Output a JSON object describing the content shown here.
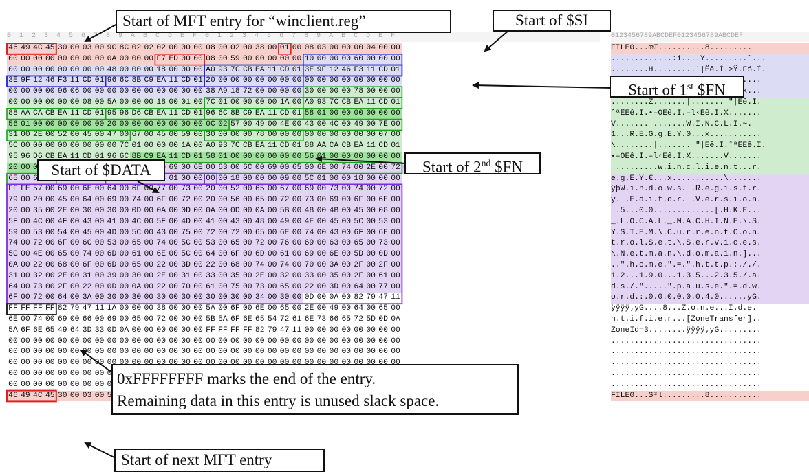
{
  "header": {
    "hex_offsets": "0  1  2  3  4  5  6  7  8  9  A  B  C  D  E  F  0  1  2  3  4  5  6  7  8  9  A  B  C  D  E  F",
    "ascii_offsets": "0123456789ABCDEF0123456789ABCDEF"
  },
  "colors": {
    "red_box": "#e02020",
    "blue_box": "#2828c8",
    "green_box": "#1e9e1e",
    "purple_box": "#7a2ee0",
    "black_box": "#111111"
  },
  "hex_rows": [
    "46 49 4C 45 30 00 03 00 9C 8C 02 02 02 00 00 00 08 00 02 00 38 00 01 00 08 03 00 00 00 04 00 00",
    "00 00 00 00 00 00 00 00 0A 00 00 00 F7 ED 00 00 08 00 59 00 00 00 00 00 10 00 00 00 60 00 00 00",
    "00 00 00 00 00 00 00 00 48 00 00 00 18 00 00 00 A0 93 7C CB EA 11 CD 01 3E 9F 12 46 F3 11 CD 01",
    "3E 9F 12 46 F3 11 CD 01 96 6C 8B C9 EA 11 CD 01 20 00 00 00 00 00 00 00 00 00 00 00 00 00 00 00",
    "00 00 00 00 96 06 00 00 00 00 00 00 00 00 00 00 38 A9 18 72 00 00 00 00 30 00 00 00 78 00 00 00",
    "00 00 00 00 00 00 08 00 5A 00 00 00 18 00 01 00 7C 01 00 00 00 00 1A 00 A0 93 7C CB EA 11 CD 01",
    "88 AA CA CB EA 11 CD 01 95 96 D6 CB EA 11 CD 01 96 6C 8B C9 EA 11 CD 01 58 01 00 00 00 00 00 00",
    "56 01 00 00 00 00 00 00 20 00 00 00 00 00 00 00 0C 02 57 00 49 00 4E 00 43 00 4C 00 49 00 7E 00",
    "31 00 2E 00 52 00 45 00 47 00 67 00 45 00 59 00 30 00 00 00 78 00 00 00 00 00 00 00 00 00 07 00",
    "5C 00 00 00 00 00 00 00 00 7C 01 00 00 00 1A 00 A0 93 7C CB EA 11 CD 01 88 AA CA CB EA 11 CD 01",
    "95 96 D6 CB EA 11 CD 01 96 6C 8B C9 EA 11 CD 01 58 01 00 00 00 00 00 00 56 01 00 00 00 00 00 00",
    "20 00 00 00 00 00 00 00 00 0D 01 77 00 69 00 6E 00 63 00 6C 00 69 00 65 00 6E 00 74 00 2E 00 72 00",
    "65 00 67 00 45 00 59 00 80 00 00 00 78 01 00 00 00 00 18 00 00 00 09 00 5C 01 00 00 18 00 00 00",
    "FF FE 57 00 69 00 6E 00 64 00 6F 00 77 00 73 00 20 00 52 00 65 00 67 00 69 00 73 00 74 00 72 00",
    "79 00 20 00 45 00 64 00 69 00 74 00 6F 00 72 00 20 00 56 00 65 00 72 00 73 00 69 00 6F 00 6E 00",
    "20 00 35 00 2E 00 30 00 30 00 0D 00 0A 00 0D 00 0A 00 0D 00 0A 00 5B 00 48 00 4B 00 45 00 08 00",
    "5F 00 4C 00 4F 00 43 00 41 00 4C 00 5F 00 4D 00 41 00 43 00 48 00 49 00 4E 00 45 00 5C 00 53 00",
    "59 00 53 00 54 00 45 00 4D 00 5C 00 43 00 75 00 72 00 72 00 65 00 6E 00 74 00 43 00 6F 00 6E 00",
    "74 00 72 00 6F 00 6C 00 53 00 65 00 74 00 5C 00 53 00 65 00 72 00 76 00 69 00 63 00 65 00 73 00",
    "5C 00 4E 00 65 00 74 00 6D 00 61 00 6E 00 5C 00 64 00 6F 00 6D 00 61 00 69 00 6E 00 5D 00 0D 00",
    "0A 00 22 00 68 00 6F 00 6D 00 65 00 22 00 3D 00 22 00 68 00 74 00 74 00 70 00 3A 00 2F 00 2F 00",
    "31 00 32 00 2E 00 31 00 39 00 30 00 2E 00 31 00 33 00 35 00 2E 00 32 00 33 00 35 00 2F 00 61 00",
    "64 00 73 00 2F 00 22 00 0D 00 0A 00 22 00 70 00 61 00 75 00 73 00 65 00 22 00 3D 00 64 00 77 00",
    "6F 00 72 00 64 00 3A 00 30 00 30 00 30 00 30 00 30 00 30 00 34 00 30 00 0D 00 0A 00 82 79 47 11",
    "FF FF FF FF 82 79 47 11 1A 00 00 00 38 00 00 00 5A 00 6F 00 6E 00 65 00 2E 00 49 00 64 00 65 00",
    "6E 00 74 00 69 00 66 00 69 00 65 00 72 00 00 00 5B 5A 6F 6E 65 54 72 61 6E 73 66 65 72 5D 0D 0A",
    "5A 6F 6E 65 49 64 3D 33 0D 0A 00 00 00 00 00 00 FF FF FF FF 82 79 47 11 00 00 00 00 00 00 00 00",
    "00 00 00 00 00 00 00 00 00 00 00 00 00 00 00 00 00 00 00 00 00 00 00 00 00 00 00 00 00 00 00 00",
    "00 00 00 00 00 00 00 00 00 00 00 00 00 00 00 00 00 00 00 00 00 00 00 00 00 00 00 00 00 00 00 00",
    "00 00 00 00 00 00 00 00 00 00 00 00 00 00 00 00 00 00 00 00 00 00 00 00 00 00 00 00 00 00 00 00",
    "00 00 00 00 00 00 00 00 00 00 00 00 00 00 00 00 00 00 00 00 00 00 00 00 00 00 00 00 00 00 00 00",
    "00 00 00 00 00 00 00 00 00 00 00 00 00 00 00 00 00 00 00 00 00 00 00 00 00 00 00 00 00 00 08 00",
    "46 49 4C 45 30 00 03 00 53 B3 6C 01 02 00 00 00 02 00 02 00 38 00 01 00 18 02 00 00 00 04 00 00"
  ],
  "ascii_rows": [
    "FILE0...œŒ..........8.........",
    ".............÷í....Y.........`...",
    "........H.........'|Ëê.Í.>Ÿ.Fó.Í.",
    ">Ÿ.Fó.Í.–l‹Éê.Í. ...............",
    "....–...........8©.r....0...x...",
    "........Z.......|....... \"|Ëê.Í.",
    "ˆªÊËê.Í.•–ÖËê.Í.–l‹Éê.Í.X.......",
    "V....... .......W.I.N.C.L.I.~.",
    "1...R.E.G.g.E.Y.0...x...........",
    "\\........|....... \"|Ëê.Í.ˆªÊËê.Í.",
    "•–ÖËê.Í.–l‹Éê.Í.X.......V.......",
    " .........w.i.n.c.l.i.e.n.t...r.",
    "e.g.E.Y.€...x...........\\.......",
    "ÿþW.i.n.d.o.w.s. .R.e.g.i.s.t.r.",
    "y. .E.d.i.t.o.r. .V.e.r.s.i.o.n.",
    " .5...0.0.............[.H.K.E...",
    "_.L.O.C.A.L._.M.A.C.H.I.N.E.\\.S.",
    "Y.S.T.E.M.\\.C.u.r.r.e.n.t.C.o.n.",
    "t.r.o.l.S.e.t.\\.S.e.r.v.i.c.e.s.",
    "\\.N.e.t.m.a.n.\\.d.o.m.a.i.n.]...",
    "..\".h.o.m.e.\".=.\".h.t.t.p.:././.",
    "1.2...1.9.0...1.3.5...2.3.5./.a.",
    "d.s./.\".....\".p.a.u.s.e.\".=.d.w.",
    "o.r.d.:.0.0.0.0.0.0.4.0.....,yG.",
    "ÿÿÿÿ‚yG....8...Z.o.n.e...I.d.e.",
    "n.t.i.f.i.e.r...[ZoneTransfer]..",
    "ZoneId=3........ÿÿÿÿ‚yG.........",
    "................................",
    "................................",
    "................................",
    "................................",
    "................................",
    "FILE0...S³l.........8..........."
  ],
  "callouts": {
    "mft_start": "Start of MFT entry for “winclient.reg”",
    "si_start": "Start of $SI",
    "fn1_pre": "Start of 1",
    "fn1_sup": "st",
    "fn1_post": " $FN",
    "fn2_pre": "Start of 2",
    "fn2_sup": "nd",
    "fn2_post": " $FN",
    "data_start": "Start of $DATA",
    "end_line1": "0xFFFFFFFF marks the end of the entry.",
    "end_line2": "Remaining data in this entry is unused slack space.",
    "next_mft": "Start of next MFT entry"
  }
}
